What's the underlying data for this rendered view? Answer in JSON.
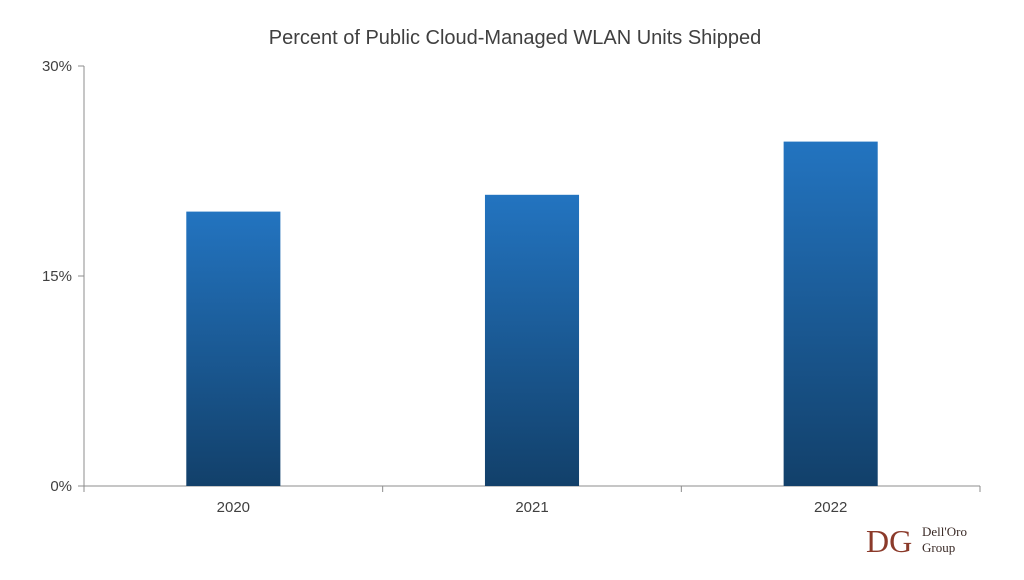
{
  "chart_data": {
    "type": "bar",
    "title": "Percent of Public Cloud-Managed WLAN Units Shipped",
    "categories": [
      "2020",
      "2021",
      "2022"
    ],
    "values": [
      19.6,
      20.8,
      24.6
    ],
    "ylim": [
      0,
      30
    ],
    "yticks": [
      0,
      15,
      30
    ],
    "ytick_labels": [
      "0%",
      "15%",
      "30%"
    ],
    "grid": false,
    "legend": "none",
    "bar_color_top": "#2374c0",
    "bar_color_bottom": "#12406a"
  },
  "logo": {
    "mark": "DG",
    "line1": "Dell'Oro",
    "line2": "Group"
  }
}
